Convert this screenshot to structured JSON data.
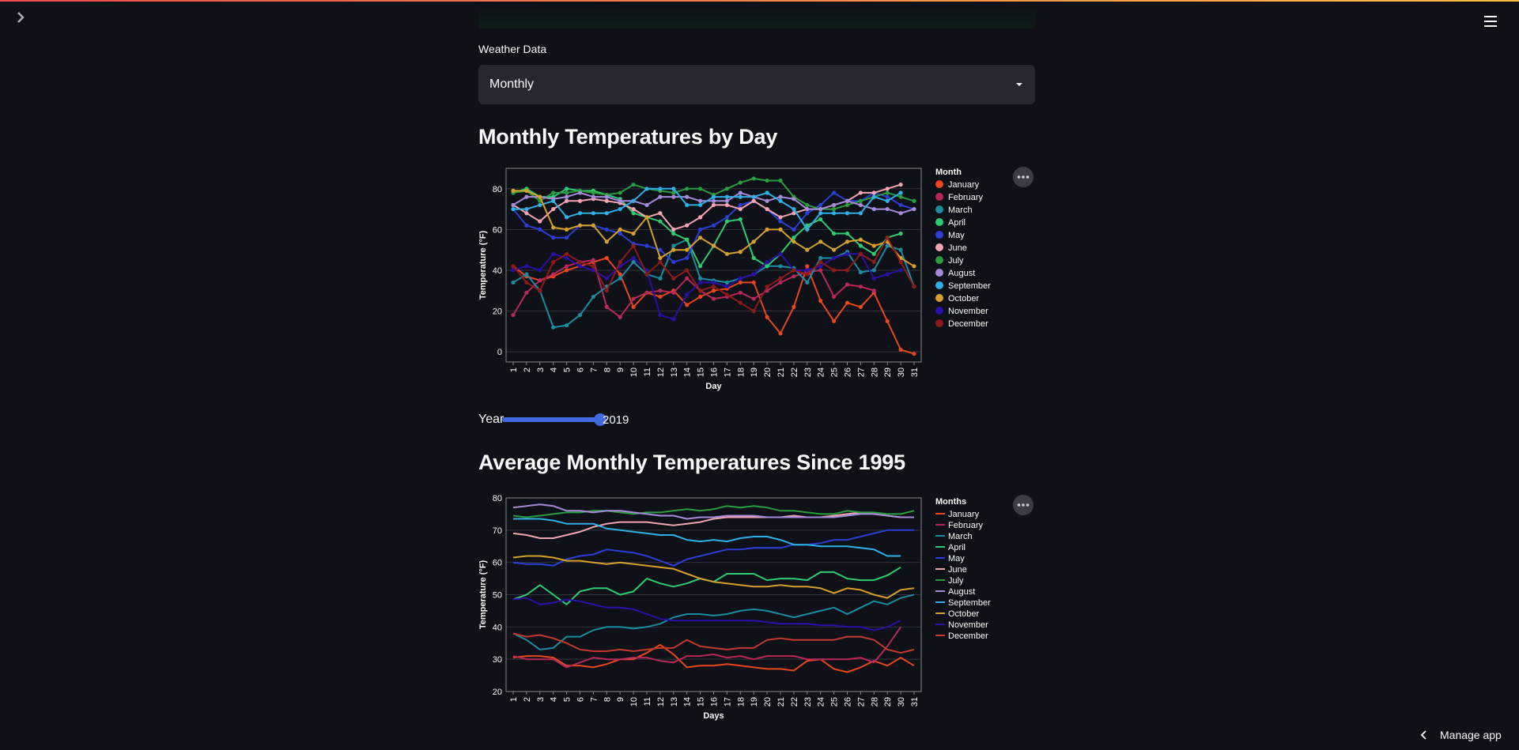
{
  "select": {
    "label": "Weather Data",
    "value": "Monthly"
  },
  "chart1_title": "Monthly Temperatures by Day",
  "chart2_title": "Average Monthly Temperatures Since 1995",
  "slider": {
    "label": "Year",
    "value": "2019",
    "fraction": 1.0
  },
  "manage_app": "Manage app",
  "colors": {
    "background": "#0e1117",
    "select_bg": "#262730",
    "slider_accent": "#4169e1"
  },
  "icons": {
    "sidebar_toggle": "chevron-right-icon",
    "main_menu": "hamburger-menu-icon",
    "select_caret": "caret-down-icon",
    "chart_menu": "more-horizontal-icon",
    "manage": "chevron-left-icon"
  },
  "chart_data": [
    {
      "type": "line",
      "markers": true,
      "ylabel": "Temperature (°F)",
      "xlabel": "Day",
      "legend_title": "Month",
      "legend_position": "right",
      "ylim": [
        -5,
        90
      ],
      "yticks": [
        0,
        20,
        40,
        60,
        80
      ],
      "x": [
        1,
        2,
        3,
        4,
        5,
        6,
        7,
        8,
        9,
        10,
        11,
        12,
        13,
        14,
        15,
        16,
        17,
        18,
        19,
        20,
        21,
        22,
        23,
        24,
        25,
        26,
        27,
        28,
        29,
        30,
        31
      ],
      "series": [
        {
          "name": "January",
          "color": "#e8461c",
          "values": [
            42,
            37,
            35,
            37,
            40,
            42,
            44,
            46,
            38,
            22,
            29,
            27,
            30,
            23,
            27,
            30,
            31,
            34,
            34,
            17,
            9,
            22,
            42,
            25,
            15,
            24,
            22,
            29,
            15,
            1,
            -1
          ]
        },
        {
          "name": "February",
          "color": "#b9285a",
          "values": [
            18,
            29,
            35,
            38,
            42,
            44,
            45,
            22,
            17,
            26,
            29,
            30,
            29,
            36,
            30,
            26,
            27,
            29,
            26,
            30,
            34,
            37,
            39,
            40,
            27,
            33,
            32,
            30,
            null,
            null,
            null
          ]
        },
        {
          "name": "March",
          "color": "#1a8ca0",
          "values": [
            34,
            38,
            30,
            12,
            13,
            18,
            27,
            32,
            36,
            44,
            38,
            36,
            52,
            55,
            36,
            35,
            34,
            36,
            38,
            42,
            42,
            41,
            34,
            46,
            46,
            49,
            39,
            40,
            52,
            50,
            32
          ]
        },
        {
          "name": "April",
          "color": "#2ecc71",
          "values": [
            78,
            80,
            76,
            76,
            80,
            79,
            79,
            77,
            75,
            68,
            66,
            64,
            58,
            55,
            42,
            52,
            64,
            65,
            46,
            42,
            48,
            56,
            62,
            65,
            58,
            58,
            52,
            48,
            56,
            58,
            null
          ]
        },
        {
          "name": "May",
          "color": "#2b3ed6",
          "values": [
            70,
            62,
            60,
            56,
            56,
            62,
            62,
            60,
            58,
            53,
            52,
            50,
            44,
            46,
            60,
            62,
            66,
            72,
            74,
            70,
            64,
            60,
            68,
            72,
            78,
            74,
            74,
            78,
            76,
            72,
            70
          ]
        },
        {
          "name": "June",
          "color": "#f4a5b4",
          "values": [
            72,
            68,
            64,
            70,
            74,
            74,
            75,
            74,
            73,
            70,
            66,
            68,
            60,
            62,
            66,
            72,
            72,
            70,
            74,
            70,
            66,
            68,
            70,
            70,
            72,
            74,
            78,
            78,
            80,
            82,
            null
          ]
        },
        {
          "name": "July",
          "color": "#2a9c3e",
          "values": [
            78,
            79,
            74,
            78,
            78,
            79,
            78,
            77,
            78,
            82,
            80,
            79,
            78,
            80,
            80,
            77,
            80,
            83,
            85,
            84,
            84,
            76,
            72,
            70,
            70,
            72,
            74,
            76,
            78,
            76,
            74
          ]
        },
        {
          "name": "August",
          "color": "#a78bdb",
          "values": [
            72,
            76,
            76,
            75,
            76,
            78,
            76,
            76,
            74,
            74,
            72,
            76,
            76,
            76,
            74,
            74,
            74,
            78,
            76,
            74,
            76,
            75,
            70,
            70,
            72,
            74,
            72,
            70,
            70,
            68,
            70
          ]
        },
        {
          "name": "September",
          "color": "#2fb0e6",
          "values": [
            70,
            70,
            72,
            74,
            66,
            68,
            68,
            68,
            70,
            74,
            80,
            80,
            80,
            72,
            72,
            76,
            76,
            76,
            76,
            78,
            74,
            70,
            60,
            68,
            68,
            68,
            68,
            76,
            74,
            78,
            null
          ]
        },
        {
          "name": "October",
          "color": "#d6a02a",
          "values": [
            79,
            79,
            76,
            61,
            60,
            62,
            62,
            54,
            60,
            58,
            66,
            46,
            50,
            50,
            56,
            52,
            48,
            49,
            54,
            60,
            60,
            54,
            50,
            54,
            50,
            54,
            55,
            52,
            54,
            46,
            42
          ]
        },
        {
          "name": "November",
          "color": "#2a0fa8",
          "values": [
            40,
            42,
            40,
            48,
            46,
            42,
            40,
            36,
            42,
            46,
            40,
            18,
            16,
            28,
            34,
            34,
            32,
            36,
            38,
            44,
            48,
            40,
            40,
            42,
            46,
            48,
            48,
            36,
            38,
            40,
            null
          ]
        },
        {
          "name": "December",
          "color": "#8e1a1a",
          "values": [
            42,
            34,
            30,
            44,
            48,
            44,
            42,
            30,
            44,
            52,
            38,
            44,
            36,
            40,
            30,
            32,
            28,
            24,
            20,
            32,
            36,
            40,
            38,
            44,
            40,
            40,
            48,
            44,
            56,
            44,
            32
          ]
        }
      ]
    },
    {
      "type": "line",
      "markers": false,
      "ylabel": "Temperature (°F)",
      "xlabel": "Days",
      "legend_title": "Months",
      "legend_position": "right",
      "ylim": [
        20,
        80
      ],
      "yticks": [
        20,
        30,
        40,
        50,
        60,
        70,
        80
      ],
      "x": [
        1,
        2,
        3,
        4,
        5,
        6,
        7,
        8,
        9,
        10,
        11,
        12,
        13,
        14,
        15,
        16,
        17,
        18,
        19,
        20,
        21,
        22,
        23,
        24,
        25,
        26,
        27,
        28,
        29,
        30,
        31
      ],
      "series": [
        {
          "name": "January",
          "color": "#e8461c",
          "values": [
            30.5,
            31,
            31,
            30.5,
            28,
            28,
            27.5,
            28.5,
            30,
            30,
            32,
            34.5,
            31.5,
            27.5,
            28,
            28,
            28.5,
            28,
            27.5,
            27,
            27,
            26.5,
            29.5,
            30,
            27,
            26,
            27.5,
            29.5,
            28,
            30.5,
            28
          ]
        },
        {
          "name": "February",
          "color": "#b9285a",
          "values": [
            31,
            30,
            30,
            30,
            27.5,
            29,
            30.5,
            30,
            30,
            30.5,
            30.5,
            29.5,
            29,
            31,
            31,
            31.5,
            30.5,
            31,
            30,
            31,
            31,
            31,
            30,
            30,
            30,
            30,
            30.5,
            29,
            34,
            40,
            null
          ]
        },
        {
          "name": "March",
          "color": "#1a8ca0",
          "values": [
            38,
            36,
            33,
            33.5,
            37,
            37,
            39,
            40,
            40,
            39.5,
            40,
            41,
            43,
            44,
            44,
            43.5,
            44,
            45,
            45.5,
            45,
            44,
            43,
            44,
            45,
            46,
            44,
            46,
            48,
            47,
            49,
            50
          ]
        },
        {
          "name": "April",
          "color": "#2ecc71",
          "values": [
            48.5,
            50,
            53,
            50,
            47,
            51,
            52,
            52,
            50,
            51,
            55,
            53.5,
            52.5,
            53.5,
            55,
            54,
            56.5,
            56.5,
            56.5,
            54.5,
            55,
            55,
            54.5,
            57,
            57,
            55,
            54.5,
            54.5,
            56,
            58.5,
            null
          ]
        },
        {
          "name": "May",
          "color": "#2b3ed6",
          "values": [
            60,
            59.5,
            59.5,
            59,
            61,
            62,
            62.5,
            64,
            63.5,
            63,
            62,
            60.5,
            59,
            61,
            62,
            63,
            64,
            64,
            64.5,
            64.5,
            64.5,
            65.5,
            65.5,
            66,
            67,
            67,
            68,
            69,
            70,
            70,
            70
          ]
        },
        {
          "name": "June",
          "color": "#f4a5b4",
          "values": [
            69,
            68.5,
            67.5,
            67.5,
            68.5,
            69.5,
            71,
            72,
            72.5,
            72.5,
            72.5,
            72,
            71.5,
            72,
            72.5,
            73.5,
            74,
            74,
            74,
            74,
            74,
            74.5,
            74,
            74,
            74.5,
            75,
            75.5,
            75,
            74.5,
            74,
            null
          ]
        },
        {
          "name": "July",
          "color": "#2a9c3e",
          "values": [
            74.5,
            74,
            74.5,
            75,
            75.5,
            75.5,
            76,
            76,
            75.5,
            75,
            75.5,
            75.5,
            76,
            76.5,
            76,
            76.5,
            77.5,
            77,
            77.5,
            77,
            76,
            76,
            75.5,
            75,
            75,
            76,
            75.5,
            75.5,
            75,
            75,
            76
          ]
        },
        {
          "name": "August",
          "color": "#a78bdb",
          "values": [
            77,
            77.5,
            78,
            77.5,
            76,
            76,
            75.5,
            76,
            76,
            75.5,
            75,
            74.5,
            74.5,
            73.5,
            74,
            74,
            74.5,
            74.5,
            74.5,
            74,
            74,
            74,
            74,
            74,
            74,
            74.5,
            75,
            75,
            74.5,
            74,
            74
          ]
        },
        {
          "name": "September",
          "color": "#2fb0e6",
          "values": [
            73.5,
            73.5,
            73.5,
            73,
            72,
            72,
            72,
            70.5,
            70,
            69.5,
            69,
            68.5,
            68.5,
            67,
            66.5,
            67,
            66.5,
            67.5,
            68,
            68,
            67,
            65.5,
            65.5,
            65,
            65,
            65,
            64.5,
            64,
            62,
            62,
            null
          ]
        },
        {
          "name": "October",
          "color": "#d6a02a",
          "values": [
            61.5,
            62,
            62,
            61.5,
            60.5,
            60.5,
            60,
            59.5,
            60,
            59.5,
            59,
            58.5,
            58,
            56.5,
            55,
            54,
            53.5,
            53,
            52.5,
            52.5,
            53,
            52.5,
            52.5,
            52,
            50.5,
            52,
            51.5,
            50,
            49,
            51.5,
            52
          ]
        },
        {
          "name": "November",
          "color": "#2a0fa8",
          "values": [
            48.5,
            49,
            47,
            47.5,
            48.5,
            48,
            47,
            46,
            46,
            45.5,
            44,
            42.5,
            42,
            42,
            42,
            42,
            42,
            42,
            42,
            41.5,
            41,
            41,
            41,
            40.5,
            40.5,
            40,
            40,
            39,
            40,
            42,
            null
          ]
        },
        {
          "name": "December",
          "color": "#c0392b",
          "values": [
            38,
            37,
            37.5,
            36.5,
            35,
            33,
            32.5,
            32.5,
            33,
            32.5,
            33,
            33.5,
            33.5,
            36,
            34,
            33.5,
            33,
            33.5,
            33.5,
            36,
            36.5,
            36,
            36,
            36,
            36,
            37,
            37,
            36,
            33,
            32,
            33
          ]
        }
      ]
    }
  ]
}
